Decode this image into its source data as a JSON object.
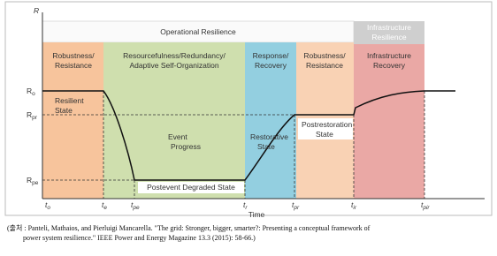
{
  "y_axis_label": "R",
  "x_axis_label": "Time",
  "header": {
    "operational": "Operational Resilience",
    "infrastructure": [
      "Infrastructure",
      "Resilience"
    ]
  },
  "phases": [
    [
      "Robustness/",
      "Resistance"
    ],
    [
      "Resourcefulness/Redundancy/",
      "Adaptive Self-Organization"
    ],
    [
      "Response/",
      "Recovery"
    ],
    [
      "Robustness/",
      "Resistance"
    ],
    [
      "Infrastructure",
      "Recovery"
    ]
  ],
  "levels": [
    {
      "main": "R",
      "sub": "o"
    },
    {
      "main": "R",
      "sub": "pr"
    },
    {
      "main": "R",
      "sub": "pe"
    }
  ],
  "times": [
    {
      "main": "t",
      "sub": "o"
    },
    {
      "main": "t",
      "sub": "e"
    },
    {
      "main": "t",
      "sub": "pe"
    },
    {
      "main": "t",
      "sub": "r"
    },
    {
      "main": "t",
      "sub": "pr"
    },
    {
      "main": "t",
      "sub": "ir"
    },
    {
      "main": "t",
      "sub": "pir"
    }
  ],
  "annotations": {
    "resilient": [
      "Resilient",
      "State"
    ],
    "event": [
      "Event",
      "Progress"
    ],
    "restorative": [
      "Restorative",
      "State"
    ],
    "postrestoration": [
      "Postrestoration",
      "State"
    ],
    "degraded": "Postevent Degraded State"
  },
  "caption": [
    "(출처 : Panteli, Mathaios, and Pierluigi Mancarella. \"The grid: Stronger, bigger, smarter?: Presenting a conceptual framework of",
    "power system resilience.\" IEEE Power and Energy Magazine 13.3 (2015): 58-66.)"
  ]
}
